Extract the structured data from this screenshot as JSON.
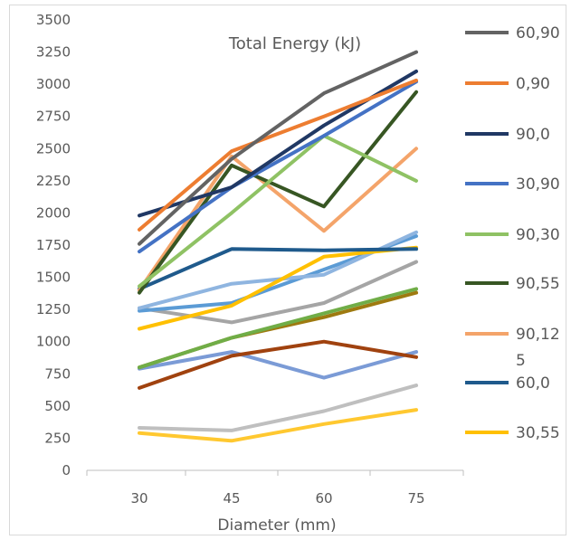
{
  "chart_data": {
    "type": "line",
    "title": "Total Energy (kJ)",
    "xlabel": "Diameter (mm)",
    "ylabel": "",
    "x": [
      30,
      45,
      60,
      75
    ],
    "ylim": [
      0,
      3500
    ],
    "yticks": [
      0,
      250,
      500,
      750,
      1000,
      1250,
      1500,
      1750,
      2000,
      2250,
      2500,
      2750,
      3000,
      3250,
      3500
    ],
    "grid": false,
    "legend": "right",
    "series": [
      {
        "name": "60,90",
        "color": "#636363",
        "values": [
          1760,
          2420,
          2930,
          3250
        ]
      },
      {
        "name": "0,90",
        "color": "#ED7D31",
        "values": [
          1870,
          2480,
          2750,
          3030
        ]
      },
      {
        "name": "90,0",
        "color": "#203864",
        "values": [
          1980,
          2200,
          2680,
          3100
        ]
      },
      {
        "name": "30,90",
        "color": "#4472C4",
        "values": [
          1700,
          2200,
          2600,
          3020
        ]
      },
      {
        "name": "90,30",
        "color": "#8FC264",
        "values": [
          1430,
          2000,
          2600,
          2250
        ]
      },
      {
        "name": "90,55",
        "color": "#375623",
        "values": [
          1380,
          2370,
          2050,
          2940
        ]
      },
      {
        "name": "90,125",
        "legend_lines": [
          "90,12",
          "5"
        ],
        "color": "#F4A46A",
        "values": [
          1400,
          2440,
          1860,
          2500
        ]
      },
      {
        "name": "60,0",
        "color": "#1F5A8C",
        "values": [
          1410,
          1720,
          1710,
          1720
        ]
      },
      {
        "name": "30,55",
        "color": "#FFC000",
        "values": [
          1100,
          1280,
          1660,
          1730
        ]
      },
      {
        "name": "",
        "color": "#8FB5E0",
        "values": [
          1260,
          1450,
          1520,
          1850
        ]
      },
      {
        "name": "",
        "color": "#5B9BD5",
        "values": [
          1240,
          1300,
          1560,
          1820
        ]
      },
      {
        "name": "",
        "color": "#A5A5A5",
        "values": [
          1260,
          1150,
          1300,
          1620
        ]
      },
      {
        "name": "",
        "color": "#70AD47",
        "values": [
          800,
          1030,
          1220,
          1410
        ]
      },
      {
        "name": "",
        "color": "#9E7A10",
        "values": [
          800,
          1030,
          1190,
          1380
        ]
      },
      {
        "name": "",
        "color": "#A0420F",
        "values": [
          640,
          890,
          1000,
          880
        ]
      },
      {
        "name": "",
        "color": "#7B9BD6",
        "values": [
          790,
          920,
          720,
          920
        ]
      },
      {
        "name": "",
        "color": "#BFBFBF",
        "values": [
          330,
          310,
          460,
          660
        ]
      },
      {
        "name": "",
        "color": "#FFC830",
        "values": [
          290,
          230,
          360,
          470
        ]
      }
    ]
  }
}
